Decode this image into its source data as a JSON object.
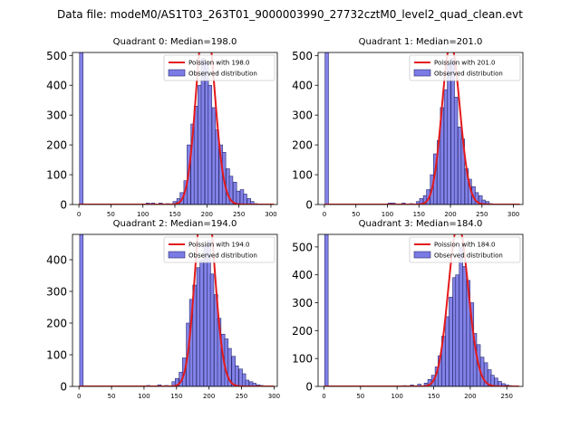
{
  "suptitle": "Data file: modeM0/AS1T03_263T01_9000003990_27732cztM0_level2_quad_clean.evt",
  "colors": {
    "hist_fill": "#7b7be6",
    "hist_edge": "#2a2a70",
    "poisson_line": "#e41a1c"
  },
  "chart_data": [
    {
      "type": "bar",
      "title": "Quadrant 0: Median=198.0",
      "xlim": [
        -10,
        310
      ],
      "ylim": [
        0,
        510
      ],
      "xticks": [
        0,
        50,
        100,
        150,
        200,
        250,
        300
      ],
      "yticks": [
        0,
        100,
        200,
        300,
        400,
        500
      ],
      "bin_width": 5.5,
      "mean": 198.0,
      "legend": {
        "placement": "top-right",
        "poisson_label": "Poission with 198.0",
        "observed_label": "Observed distribution"
      },
      "bins": [
        {
          "x": 1,
          "count": 510
        },
        {
          "x": 105,
          "count": 5
        },
        {
          "x": 113,
          "count": 5
        },
        {
          "x": 125,
          "count": 5
        },
        {
          "x": 136,
          "count": 3
        },
        {
          "x": 147,
          "count": 10
        },
        {
          "x": 153,
          "count": 20
        },
        {
          "x": 158,
          "count": 40
        },
        {
          "x": 164,
          "count": 80
        },
        {
          "x": 169,
          "count": 200
        },
        {
          "x": 175,
          "count": 270
        },
        {
          "x": 180,
          "count": 330
        },
        {
          "x": 186,
          "count": 400
        },
        {
          "x": 191,
          "count": 490
        },
        {
          "x": 197,
          "count": 480
        },
        {
          "x": 202,
          "count": 400
        },
        {
          "x": 208,
          "count": 325
        },
        {
          "x": 213,
          "count": 250
        },
        {
          "x": 219,
          "count": 200
        },
        {
          "x": 224,
          "count": 175
        },
        {
          "x": 230,
          "count": 120
        },
        {
          "x": 235,
          "count": 95
        },
        {
          "x": 241,
          "count": 75
        },
        {
          "x": 246,
          "count": 45
        },
        {
          "x": 252,
          "count": 50
        },
        {
          "x": 257,
          "count": 35
        },
        {
          "x": 263,
          "count": 20
        },
        {
          "x": 268,
          "count": 10
        },
        {
          "x": 274,
          "count": 3
        }
      ]
    },
    {
      "type": "bar",
      "title": "Quadrant 1: Median=201.0",
      "xlim": [
        -10,
        315
      ],
      "ylim": [
        0,
        510
      ],
      "xticks": [
        0,
        50,
        100,
        150,
        200,
        250,
        300
      ],
      "yticks": [
        0,
        100,
        200,
        300,
        400,
        500
      ],
      "bin_width": 5.5,
      "mean": 201.0,
      "legend": {
        "placement": "top-right",
        "poisson_label": "Poission with 201.0",
        "observed_label": "Observed distribution"
      },
      "bins": [
        {
          "x": 1,
          "count": 510
        },
        {
          "x": 101,
          "count": 5
        },
        {
          "x": 107,
          "count": 5
        },
        {
          "x": 123,
          "count": 5
        },
        {
          "x": 135,
          "count": 3
        },
        {
          "x": 146,
          "count": 10
        },
        {
          "x": 151,
          "count": 20
        },
        {
          "x": 157,
          "count": 30
        },
        {
          "x": 162,
          "count": 50
        },
        {
          "x": 168,
          "count": 100
        },
        {
          "x": 173,
          "count": 170
        },
        {
          "x": 179,
          "count": 215
        },
        {
          "x": 184,
          "count": 325
        },
        {
          "x": 190,
          "count": 385
        },
        {
          "x": 195,
          "count": 470
        },
        {
          "x": 201,
          "count": 490
        },
        {
          "x": 206,
          "count": 360
        },
        {
          "x": 212,
          "count": 260
        },
        {
          "x": 217,
          "count": 220
        },
        {
          "x": 223,
          "count": 120
        },
        {
          "x": 228,
          "count": 85
        },
        {
          "x": 234,
          "count": 60
        },
        {
          "x": 239,
          "count": 40
        },
        {
          "x": 245,
          "count": 30
        },
        {
          "x": 250,
          "count": 15
        },
        {
          "x": 256,
          "count": 10
        },
        {
          "x": 261,
          "count": 3
        }
      ]
    },
    {
      "type": "bar",
      "title": "Quadrant 2: Median=194.0",
      "xlim": [
        -10,
        305
      ],
      "ylim": [
        0,
        480
      ],
      "xticks": [
        0,
        50,
        100,
        150,
        200,
        250,
        300
      ],
      "yticks": [
        0,
        100,
        200,
        300,
        400
      ],
      "bin_width": 5.4,
      "mean": 194.0,
      "legend": {
        "placement": "top-right",
        "poisson_label": "Poission with 194.0",
        "observed_label": "Observed distribution"
      },
      "bins": [
        {
          "x": 1,
          "count": 480
        },
        {
          "x": 104,
          "count": 3
        },
        {
          "x": 121,
          "count": 5
        },
        {
          "x": 132,
          "count": 3
        },
        {
          "x": 143,
          "count": 15
        },
        {
          "x": 148,
          "count": 25
        },
        {
          "x": 154,
          "count": 45
        },
        {
          "x": 159,
          "count": 90
        },
        {
          "x": 165,
          "count": 200
        },
        {
          "x": 170,
          "count": 275
        },
        {
          "x": 175,
          "count": 320
        },
        {
          "x": 181,
          "count": 375
        },
        {
          "x": 186,
          "count": 400
        },
        {
          "x": 192,
          "count": 445
        },
        {
          "x": 197,
          "count": 460
        },
        {
          "x": 202,
          "count": 355
        },
        {
          "x": 208,
          "count": 290
        },
        {
          "x": 213,
          "count": 215
        },
        {
          "x": 219,
          "count": 165
        },
        {
          "x": 224,
          "count": 150
        },
        {
          "x": 229,
          "count": 120
        },
        {
          "x": 235,
          "count": 95
        },
        {
          "x": 240,
          "count": 65
        },
        {
          "x": 246,
          "count": 55
        },
        {
          "x": 251,
          "count": 40
        },
        {
          "x": 256,
          "count": 20
        },
        {
          "x": 262,
          "count": 15
        },
        {
          "x": 267,
          "count": 10
        },
        {
          "x": 273,
          "count": 5
        },
        {
          "x": 278,
          "count": 3
        }
      ]
    },
    {
      "type": "bar",
      "title": "Quadrant 3: Median=184.0",
      "xlim": [
        -8,
        272
      ],
      "ylim": [
        0,
        545
      ],
      "xticks": [
        0,
        50,
        100,
        150,
        200,
        250
      ],
      "yticks": [
        0,
        100,
        200,
        300,
        400,
        500
      ],
      "bin_width": 4.8,
      "mean": 184.0,
      "legend": {
        "placement": "top-right",
        "poisson_label": "Poission with 184.0",
        "observed_label": "Observed distribution"
      },
      "bins": [
        {
          "x": 1,
          "count": 545
        },
        {
          "x": 108,
          "count": 3
        },
        {
          "x": 118,
          "count": 5
        },
        {
          "x": 128,
          "count": 8
        },
        {
          "x": 137,
          "count": 12
        },
        {
          "x": 142,
          "count": 25
        },
        {
          "x": 147,
          "count": 40
        },
        {
          "x": 152,
          "count": 70
        },
        {
          "x": 156,
          "count": 110
        },
        {
          "x": 161,
          "count": 180
        },
        {
          "x": 166,
          "count": 250
        },
        {
          "x": 171,
          "count": 320
        },
        {
          "x": 176,
          "count": 390
        },
        {
          "x": 180,
          "count": 400
        },
        {
          "x": 185,
          "count": 500
        },
        {
          "x": 190,
          "count": 430
        },
        {
          "x": 195,
          "count": 380
        },
        {
          "x": 200,
          "count": 300
        },
        {
          "x": 204,
          "count": 190
        },
        {
          "x": 209,
          "count": 150
        },
        {
          "x": 214,
          "count": 105
        },
        {
          "x": 219,
          "count": 85
        },
        {
          "x": 224,
          "count": 60
        },
        {
          "x": 228,
          "count": 40
        },
        {
          "x": 233,
          "count": 30
        },
        {
          "x": 238,
          "count": 18
        },
        {
          "x": 243,
          "count": 10
        },
        {
          "x": 248,
          "count": 5
        },
        {
          "x": 252,
          "count": 3
        }
      ]
    }
  ]
}
